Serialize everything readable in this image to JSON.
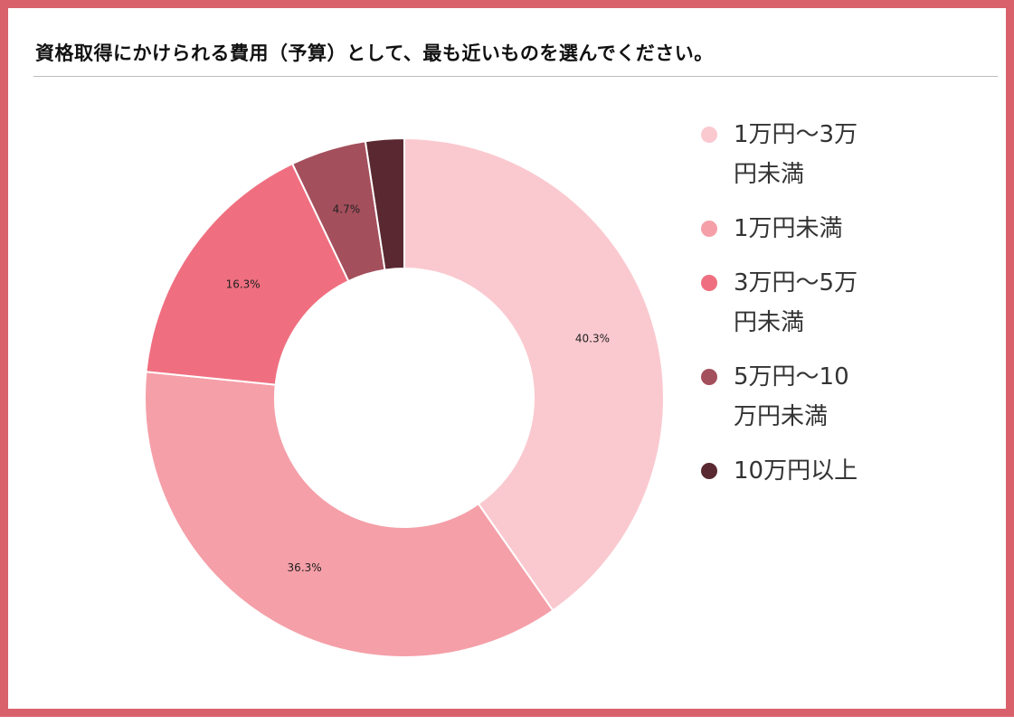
{
  "title": "資格取得にかけられる費用（予算）として、最も近いものを選んでください。",
  "chart_data": {
    "type": "pie",
    "variant": "donut",
    "categories": [
      "1万円〜3万円未満",
      "1万円未満",
      "3万円〜5万円未満",
      "5万円〜10万円未満",
      "10万円以上"
    ],
    "values": [
      40.3,
      36.3,
      16.3,
      4.7,
      2.4
    ],
    "data_labels": [
      "40.3%",
      "36.3%",
      "16.3%",
      "4.7%",
      ""
    ],
    "colors": [
      "#fac9cf",
      "#f59fa8",
      "#ef6f80",
      "#a44f5c",
      "#5a2830"
    ],
    "legend": {
      "placement": "right",
      "items": [
        {
          "line1": "1万円〜3万",
          "line2": "円未満"
        },
        {
          "line1": "1万円未満",
          "line2": ""
        },
        {
          "line1": "3万円〜5万",
          "line2": "円未満"
        },
        {
          "line1": "5万円〜10",
          "line2": "万円未満"
        },
        {
          "line1": "10万円以上",
          "line2": ""
        }
      ]
    }
  }
}
